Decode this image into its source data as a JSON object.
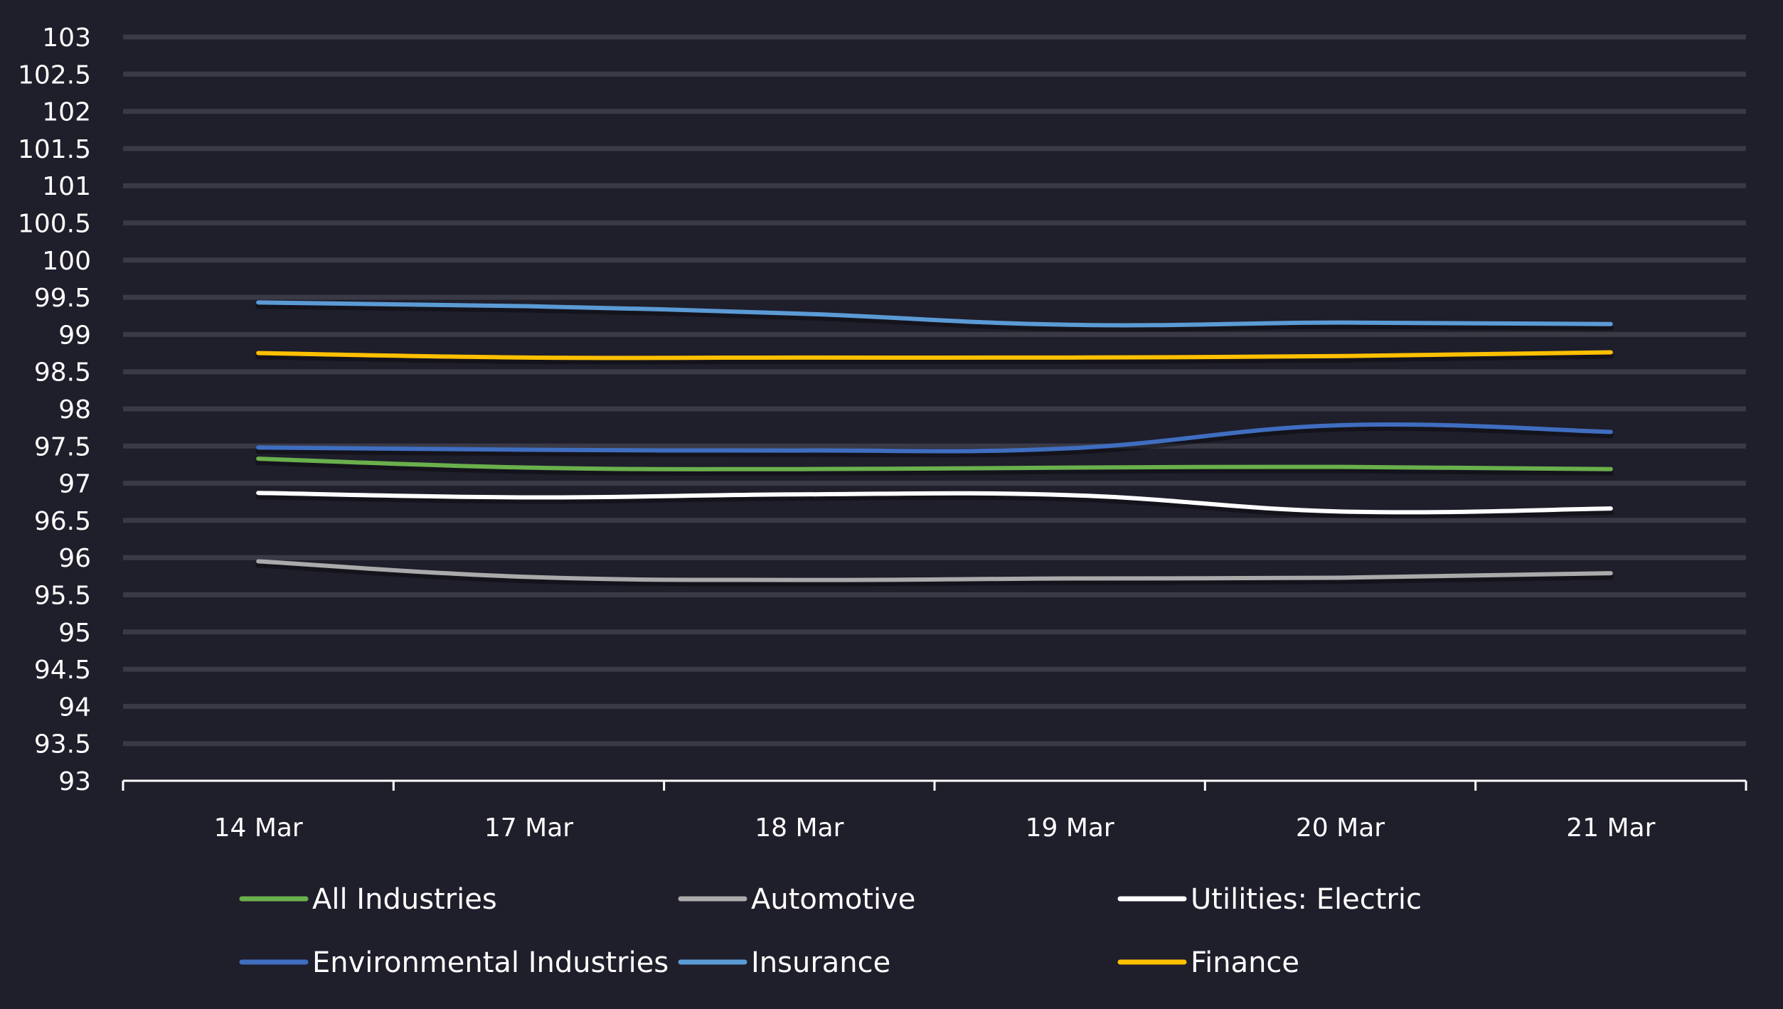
{
  "chart_data": {
    "type": "line",
    "title": "",
    "xlabel": "",
    "ylabel": "",
    "categories": [
      "14 Mar",
      "17 Mar",
      "18 Mar",
      "19 Mar",
      "20 Mar",
      "21 Mar"
    ],
    "ylim": [
      93,
      103
    ],
    "yticks": [
      "93",
      "93.5",
      "94",
      "94.5",
      "95",
      "95.5",
      "96",
      "96.5",
      "97",
      "97.5",
      "98",
      "98.5",
      "99",
      "99.5",
      "100",
      "100.5",
      "101",
      "101.5",
      "102",
      "102.5",
      "103"
    ],
    "grid": true,
    "legend_position": "bottom",
    "series": [
      {
        "name": "All Industries",
        "color": "#6ab04c",
        "values": [
          97.33,
          97.21,
          97.19,
          97.21,
          97.22,
          97.19
        ]
      },
      {
        "name": "Automotive",
        "color": "#aaaaaa",
        "values": [
          95.95,
          95.74,
          95.7,
          95.72,
          95.73,
          95.79
        ]
      },
      {
        "name": "Utilities: Electric",
        "color": "#ffffff",
        "values": [
          96.87,
          96.81,
          96.85,
          96.84,
          96.62,
          96.66
        ]
      },
      {
        "name": "Environmental Industries",
        "color": "#3f6ec0",
        "values": [
          97.48,
          97.45,
          97.44,
          97.47,
          97.78,
          97.69
        ]
      },
      {
        "name": "Insurance",
        "color": "#5b9bd5",
        "values": [
          99.43,
          99.38,
          99.28,
          99.13,
          99.16,
          99.14
        ]
      },
      {
        "name": "Finance",
        "color": "#ffc000",
        "values": [
          98.75,
          98.69,
          98.69,
          98.69,
          98.71,
          98.76
        ]
      }
    ]
  },
  "colors": {
    "background": "#1f1e2b",
    "gridline": "#3a3a46",
    "axis": "#ffffff",
    "text": "#ffffff"
  }
}
